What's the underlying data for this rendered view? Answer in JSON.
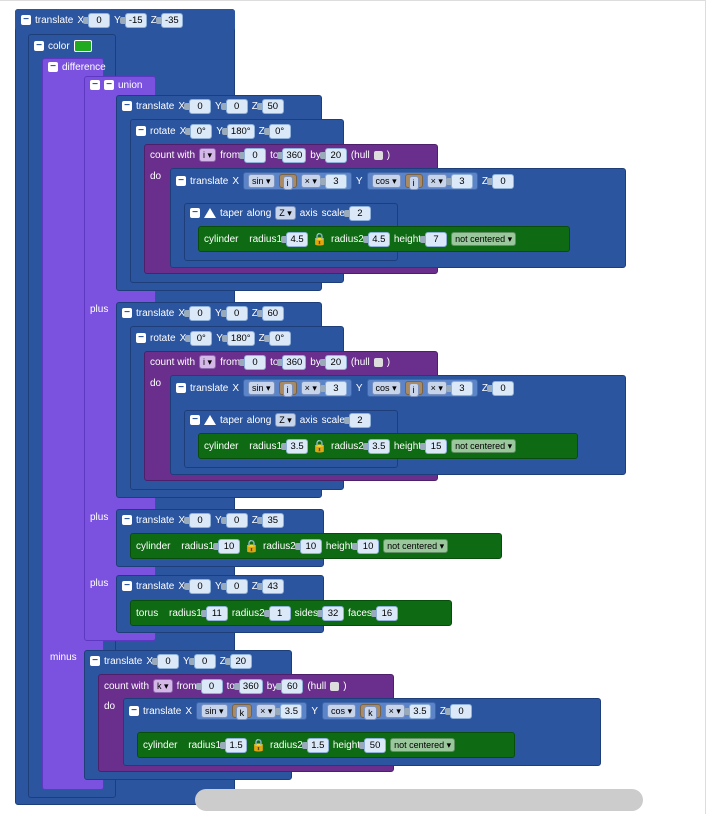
{
  "outer": {
    "label": "translate",
    "x": "0",
    "y": "-15",
    "z": "-35"
  },
  "color": {
    "label": "color",
    "swatch": "#1faa1f"
  },
  "difference": {
    "label": "difference",
    "plus": "plus",
    "minus": "minus"
  },
  "union": {
    "label": "union"
  },
  "axis": {
    "x": "X",
    "y": "Y",
    "z": "Z"
  },
  "group1": {
    "translate": {
      "label": "translate",
      "x": "0",
      "y": "0",
      "z": "50"
    },
    "rotate": {
      "label": "rotate",
      "x": "0°",
      "y": "180°",
      "z": "0°"
    },
    "count": {
      "label": "count with",
      "var": "i",
      "from_label": "from",
      "from": "0",
      "to_label": "to",
      "to": "360",
      "by_label": "by",
      "by": "20",
      "hull": "(hull",
      "close": ")",
      "do": "do"
    },
    "inner": {
      "label": "translate",
      "sin": "sin",
      "cos": "cos",
      "var": "i",
      "op": "×",
      "mult": "3",
      "z": "0"
    },
    "taper": {
      "label": "taper",
      "along": "along",
      "axis": "Z",
      "axis_label": "axis",
      "scale_label": "scale",
      "scale": "2"
    },
    "cylinder": {
      "label": "cylinder",
      "r1_label": "radius1",
      "r1": "4.5",
      "r2_label": "radius2",
      "r2": "4.5",
      "h_label": "height",
      "h": "7",
      "center": "not centered"
    }
  },
  "group2": {
    "translate": {
      "label": "translate",
      "x": "0",
      "y": "0",
      "z": "60"
    },
    "rotate": {
      "label": "rotate",
      "x": "0°",
      "y": "180°",
      "z": "0°"
    },
    "count": {
      "label": "count with",
      "var": "i",
      "from_label": "from",
      "from": "0",
      "to_label": "to",
      "to": "360",
      "by_label": "by",
      "by": "20",
      "hull": "(hull",
      "close": ")",
      "do": "do"
    },
    "inner": {
      "label": "translate",
      "sin": "sin",
      "cos": "cos",
      "var": "i",
      "op": "×",
      "mult": "3",
      "z": "0"
    },
    "taper": {
      "label": "taper",
      "along": "along",
      "axis": "Z",
      "axis_label": "axis",
      "scale_label": "scale",
      "scale": "2"
    },
    "cylinder": {
      "label": "cylinder",
      "r1_label": "radius1",
      "r1": "3.5",
      "r2_label": "radius2",
      "r2": "3.5",
      "h_label": "height",
      "h": "15",
      "center": "not centered"
    }
  },
  "group3": {
    "translate": {
      "label": "translate",
      "x": "0",
      "y": "0",
      "z": "35"
    },
    "cylinder": {
      "label": "cylinder",
      "r1_label": "radius1",
      "r1": "10",
      "r2_label": "radius2",
      "r2": "10",
      "h_label": "height",
      "h": "10",
      "center": "not centered"
    }
  },
  "group4": {
    "translate": {
      "label": "translate",
      "x": "0",
      "y": "0",
      "z": "43"
    },
    "torus": {
      "label": "torus",
      "r1_label": "radius1",
      "r1": "11",
      "r2_label": "radius2",
      "r2": "1",
      "sides_label": "sides",
      "sides": "32",
      "faces_label": "faces",
      "faces": "16"
    }
  },
  "minus": {
    "translate": {
      "label": "translate",
      "x": "0",
      "y": "0",
      "z": "20"
    },
    "count": {
      "label": "count with",
      "var": "k",
      "from_label": "from",
      "from": "0",
      "to_label": "to",
      "to": "360",
      "by_label": "by",
      "by": "60",
      "hull": "(hull",
      "close": ")",
      "do": "do"
    },
    "inner": {
      "label": "translate",
      "sin": "sin",
      "cos": "cos",
      "var": "k",
      "op": "×",
      "mult": "3.5",
      "z": "0"
    },
    "cylinder": {
      "label": "cylinder",
      "r1_label": "radius1",
      "r1": "1.5",
      "r2_label": "radius2",
      "r2": "1.5",
      "h_label": "height",
      "h": "50",
      "center": "not centered"
    }
  },
  "icons": {
    "collapse": "−",
    "expand": "+",
    "lock": "🔒",
    "dropdown": "▾"
  }
}
